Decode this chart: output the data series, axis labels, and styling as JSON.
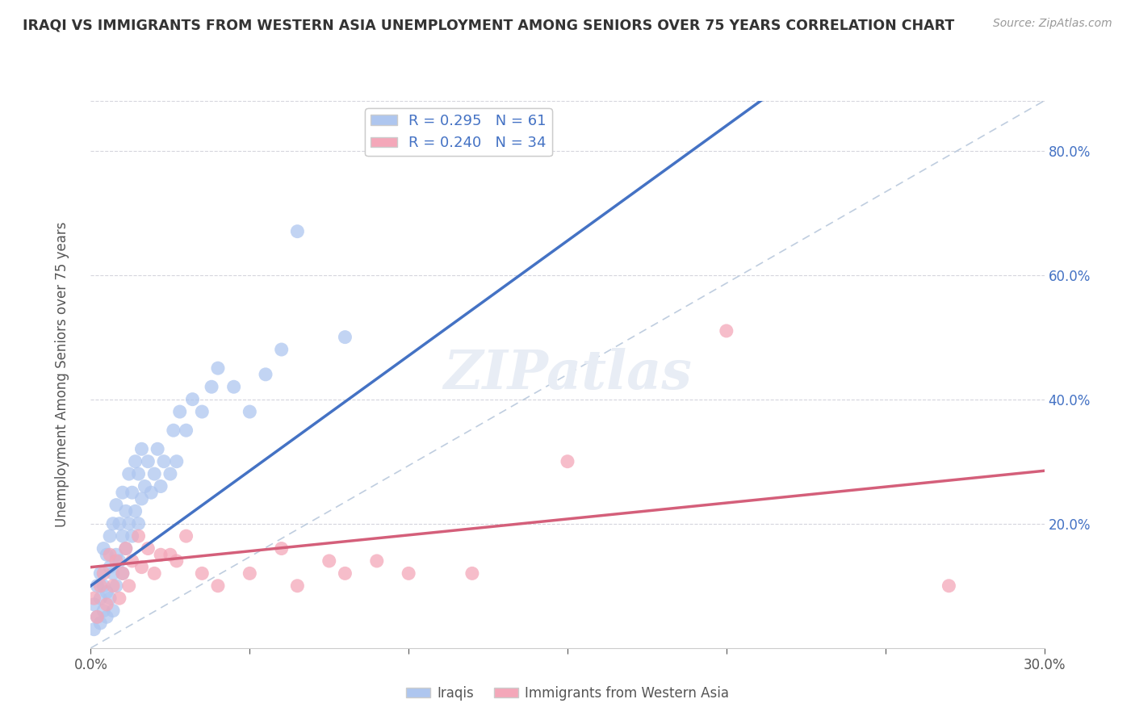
{
  "title": "IRAQI VS IMMIGRANTS FROM WESTERN ASIA UNEMPLOYMENT AMONG SENIORS OVER 75 YEARS CORRELATION CHART",
  "source": "Source: ZipAtlas.com",
  "ylabel": "Unemployment Among Seniors over 75 years",
  "xlim": [
    0.0,
    0.3
  ],
  "ylim": [
    0.0,
    0.88
  ],
  "iraqis_color": "#aec6ef",
  "western_asia_color": "#f4a7b9",
  "iraqis_line_color": "#4472C4",
  "western_asia_line_color": "#D45F7A",
  "diagonal_line_color": "#b8c8dc",
  "R_iraqis": 0.295,
  "N_iraqis": 61,
  "R_western_asia": 0.24,
  "N_western_asia": 34,
  "iraqis_line_x0": 0.0,
  "iraqis_line_y0": 0.1,
  "iraqis_line_x1": 0.1,
  "iraqis_line_y1": 0.47,
  "western_line_x0": 0.0,
  "western_line_y0": 0.13,
  "western_line_x1": 0.3,
  "western_line_y1": 0.285,
  "iraqis_x": [
    0.001,
    0.001,
    0.002,
    0.002,
    0.003,
    0.003,
    0.003,
    0.004,
    0.004,
    0.004,
    0.005,
    0.005,
    0.005,
    0.006,
    0.006,
    0.006,
    0.007,
    0.007,
    0.007,
    0.008,
    0.008,
    0.008,
    0.009,
    0.009,
    0.01,
    0.01,
    0.01,
    0.011,
    0.011,
    0.012,
    0.012,
    0.013,
    0.013,
    0.014,
    0.014,
    0.015,
    0.015,
    0.016,
    0.016,
    0.017,
    0.018,
    0.019,
    0.02,
    0.021,
    0.022,
    0.023,
    0.025,
    0.026,
    0.027,
    0.028,
    0.03,
    0.032,
    0.035,
    0.038,
    0.04,
    0.045,
    0.05,
    0.055,
    0.06,
    0.065,
    0.08
  ],
  "iraqis_y": [
    0.03,
    0.07,
    0.05,
    0.1,
    0.04,
    0.08,
    0.12,
    0.06,
    0.1,
    0.16,
    0.05,
    0.09,
    0.15,
    0.08,
    0.13,
    0.18,
    0.06,
    0.12,
    0.2,
    0.1,
    0.15,
    0.23,
    0.14,
    0.2,
    0.12,
    0.18,
    0.25,
    0.16,
    0.22,
    0.2,
    0.28,
    0.18,
    0.25,
    0.22,
    0.3,
    0.2,
    0.28,
    0.24,
    0.32,
    0.26,
    0.3,
    0.25,
    0.28,
    0.32,
    0.26,
    0.3,
    0.28,
    0.35,
    0.3,
    0.38,
    0.35,
    0.4,
    0.38,
    0.42,
    0.45,
    0.42,
    0.38,
    0.44,
    0.48,
    0.67,
    0.5
  ],
  "western_asia_x": [
    0.001,
    0.002,
    0.003,
    0.004,
    0.005,
    0.006,
    0.007,
    0.008,
    0.009,
    0.01,
    0.011,
    0.012,
    0.013,
    0.015,
    0.016,
    0.018,
    0.02,
    0.022,
    0.025,
    0.027,
    0.03,
    0.035,
    0.04,
    0.05,
    0.06,
    0.065,
    0.075,
    0.08,
    0.09,
    0.1,
    0.12,
    0.15,
    0.2,
    0.27
  ],
  "western_asia_y": [
    0.08,
    0.05,
    0.1,
    0.12,
    0.07,
    0.15,
    0.1,
    0.14,
    0.08,
    0.12,
    0.16,
    0.1,
    0.14,
    0.18,
    0.13,
    0.16,
    0.12,
    0.15,
    0.15,
    0.14,
    0.18,
    0.12,
    0.1,
    0.12,
    0.16,
    0.1,
    0.14,
    0.12,
    0.14,
    0.12,
    0.12,
    0.3,
    0.51,
    0.1
  ],
  "background_color": "#ffffff",
  "grid_color": "#d5d5dd",
  "legend_label_iraqis": "Iraqis",
  "legend_label_western": "Immigrants from Western Asia"
}
